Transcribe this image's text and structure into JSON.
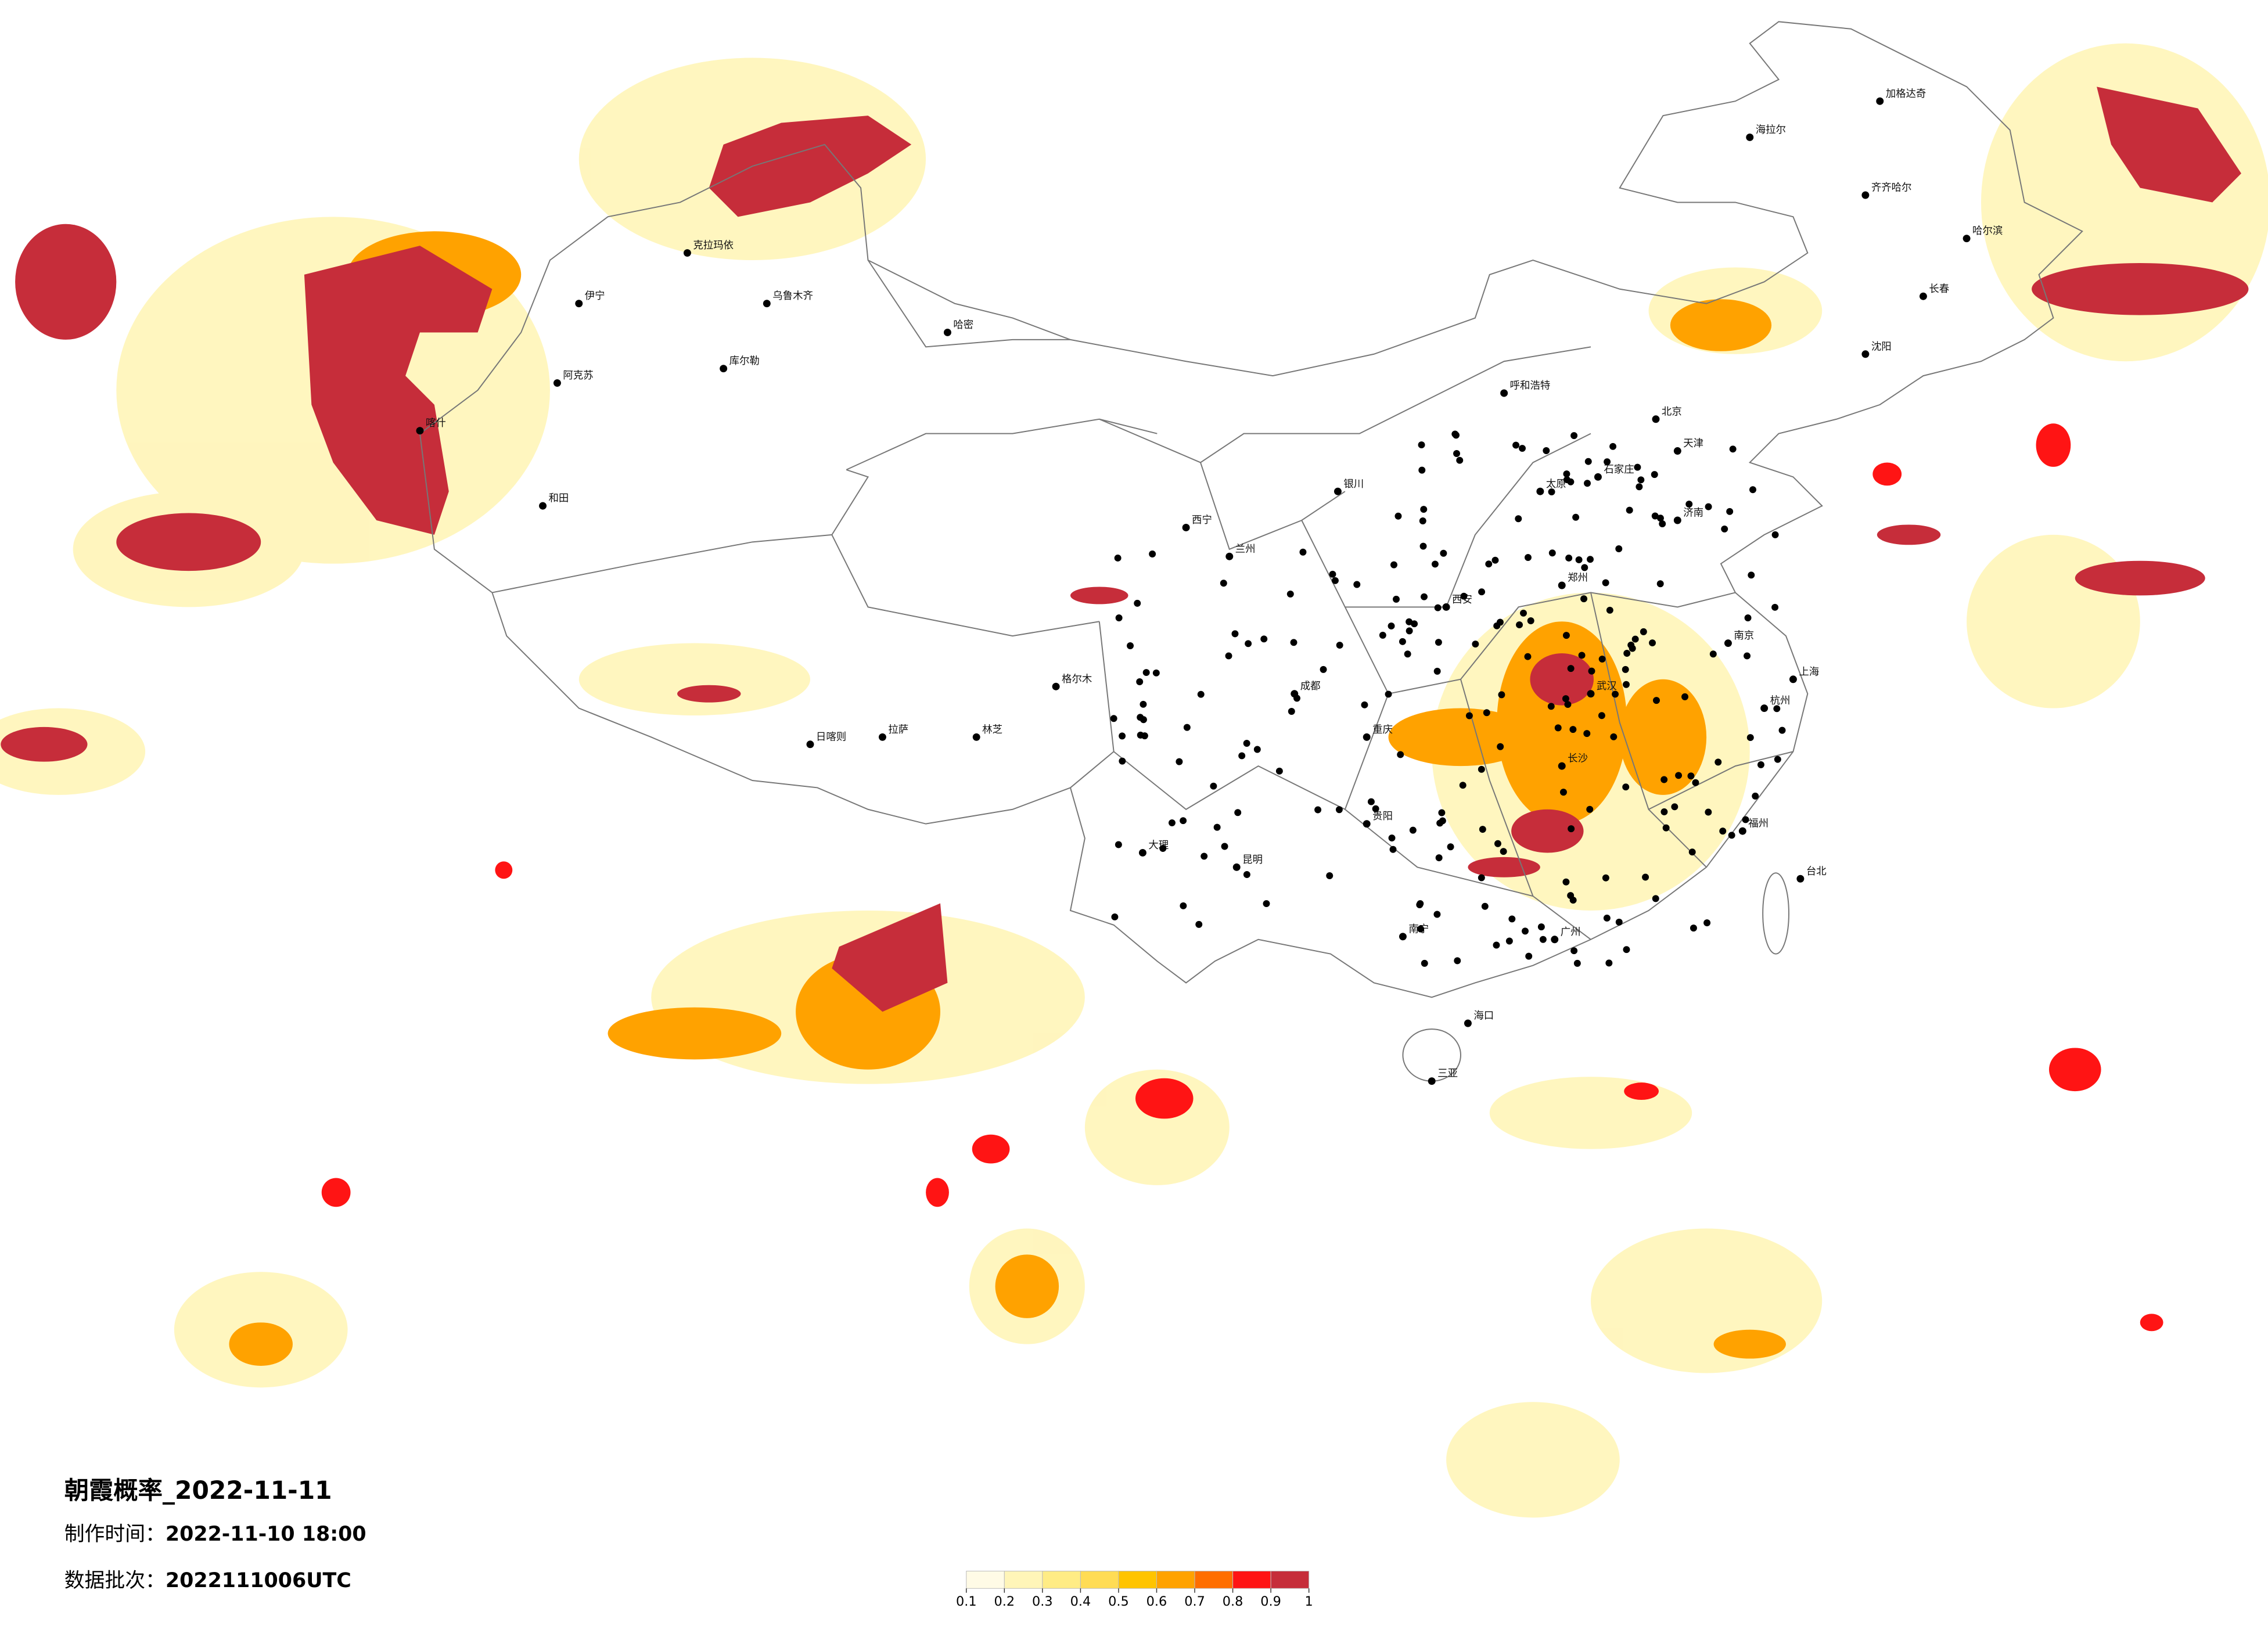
{
  "header": {
    "title": "朝霞概率_2022-11-11",
    "made_label": "制作时间：",
    "made_time": "2022-11-10 18:00",
    "batch_label": "数据批次：",
    "batch": "2022111006UTC"
  },
  "legend": {
    "ticks": [
      0.1,
      0.2,
      0.3,
      0.4,
      0.5,
      0.6,
      0.7,
      0.8,
      0.9,
      1
    ],
    "colors": [
      "#fffbe6",
      "#fff5b8",
      "#ffec85",
      "#ffdc55",
      "#ffc400",
      "#ffa200",
      "#ff6e00",
      "#ff1414",
      "#c62d3a"
    ]
  },
  "cities": [
    "北京",
    "天津",
    "上海",
    "广州",
    "重庆",
    "成都",
    "武汉",
    "西安",
    "拉萨",
    "乌鲁木齐",
    "哈尔滨",
    "长春",
    "沈阳",
    "呼和浩特",
    "兰州",
    "西宁",
    "昆明",
    "南宁",
    "海口",
    "台北",
    "杭州",
    "南京",
    "郑州",
    "长沙",
    "贵阳",
    "福州",
    "济南",
    "太原",
    "石家庄",
    "银川",
    "和田",
    "喀什",
    "阿克苏",
    "库尔勒",
    "哈密",
    "伊宁",
    "克拉玛依",
    "海拉尔",
    "加格达奇",
    "齐齐哈尔",
    "格尔木",
    "日喀则",
    "林芝",
    "大理",
    "三亚"
  ]
}
